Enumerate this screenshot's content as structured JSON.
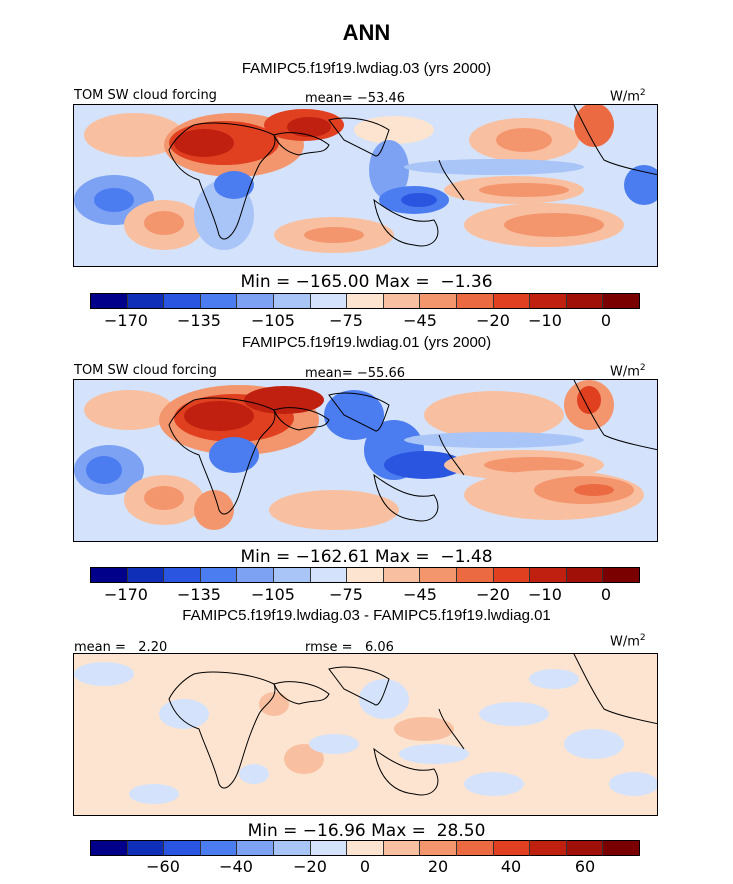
{
  "page": {
    "title": "ANN",
    "unit": "W/m",
    "unit_exp": "2"
  },
  "colors": [
    "#00008b",
    "#0f2fb8",
    "#2a55e0",
    "#4c7df0",
    "#7da2f4",
    "#a9c4f7",
    "#d4e3fb",
    "#fde4d0",
    "#f8c0a0",
    "#f3966e",
    "#ec6a42",
    "#e04020",
    "#c02010",
    "#a01008",
    "#7a0000"
  ],
  "panels": [
    {
      "subtitle": "FAMIPC5.f19f19.lwdiag.03 (yrs 2000)",
      "left_label": "TOM SW cloud forcing",
      "center_label": "mean= −53.46",
      "minmax": "Min = −165.00 Max =  −1.36",
      "ticks": [
        "−170",
        "−135",
        "−105",
        "−75",
        "−45",
        "−20",
        "−10",
        "0"
      ]
    },
    {
      "subtitle": "FAMIPC5.f19f19.lwdiag.01 (yrs 2000)",
      "left_label": "TOM SW cloud forcing",
      "center_label": "mean= −55.66",
      "minmax": "Min = −162.61 Max =  −1.48",
      "ticks": [
        "−170",
        "−135",
        "−105",
        "−75",
        "−45",
        "−20",
        "−10",
        "0"
      ]
    },
    {
      "subtitle": "FAMIPC5.f19f19.lwdiag.03 - FAMIPC5.f19f19.lwdiag.01",
      "left_label": "mean =   2.20",
      "center_label": "rmse =   6.06",
      "minmax": "Min = −16.96 Max =  28.50",
      "ticks": [
        "−60",
        "−40",
        "−20",
        "0",
        "20",
        "40",
        "60"
      ]
    }
  ]
}
